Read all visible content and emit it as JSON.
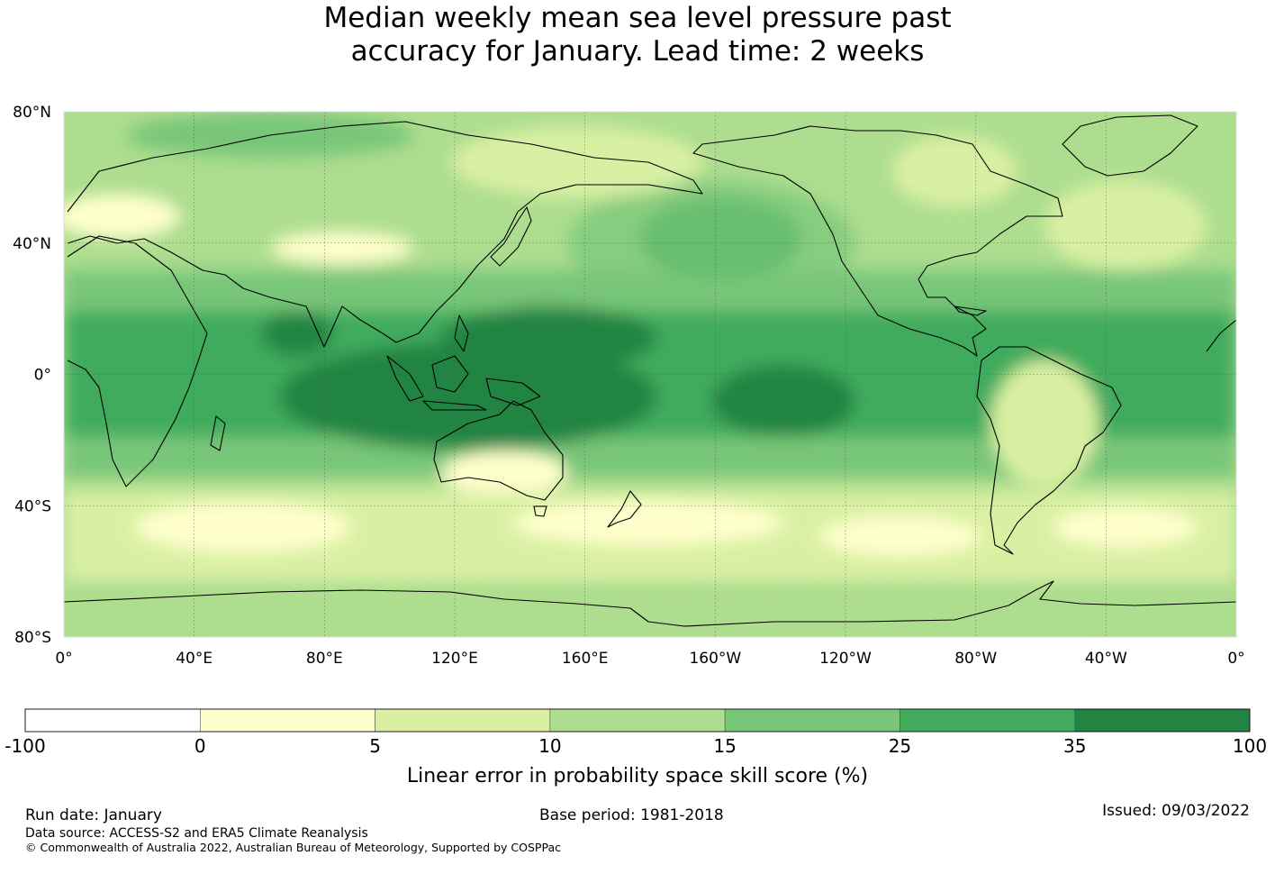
{
  "title": {
    "line1": "Median weekly mean sea level pressure past",
    "line2": "accuracy for January. Lead time: 2 weeks"
  },
  "map": {
    "lat_labels": [
      "80°N",
      "40°N",
      "0°",
      "40°S",
      "80°S"
    ],
    "lat_values": [
      80,
      40,
      0,
      -40,
      -80
    ],
    "lon_labels": [
      "0°",
      "40°E",
      "80°E",
      "120°E",
      "160°E",
      "160°W",
      "120°W",
      "80°W",
      "40°W",
      "0°"
    ],
    "lon_values": [
      0,
      40,
      80,
      120,
      160,
      200,
      240,
      280,
      320,
      360
    ],
    "lon_range": [
      0,
      360
    ],
    "lat_range": [
      -80,
      80
    ],
    "grid": true
  },
  "colorbar": {
    "ticks": [
      "-100",
      "0",
      "5",
      "10",
      "15",
      "25",
      "35",
      "100"
    ],
    "colors": [
      "#ffffff",
      "#ffffcc",
      "#d9f0a3",
      "#addd8e",
      "#78c679",
      "#41ab5d",
      "#238443"
    ],
    "label": "Linear error in probability space skill score (%)"
  },
  "footer": {
    "run_date": "Run date: January",
    "base_period": "Base period: 1981-2018",
    "issued": "Issued: 09/03/2022",
    "data_source": "Data source: ACCESS-S2 and ERA5 Climate Reanalysis",
    "copyright": "© Commonwealth of Australia 2022, Australian Bureau of Meteorology, Supported by COSPPac"
  }
}
